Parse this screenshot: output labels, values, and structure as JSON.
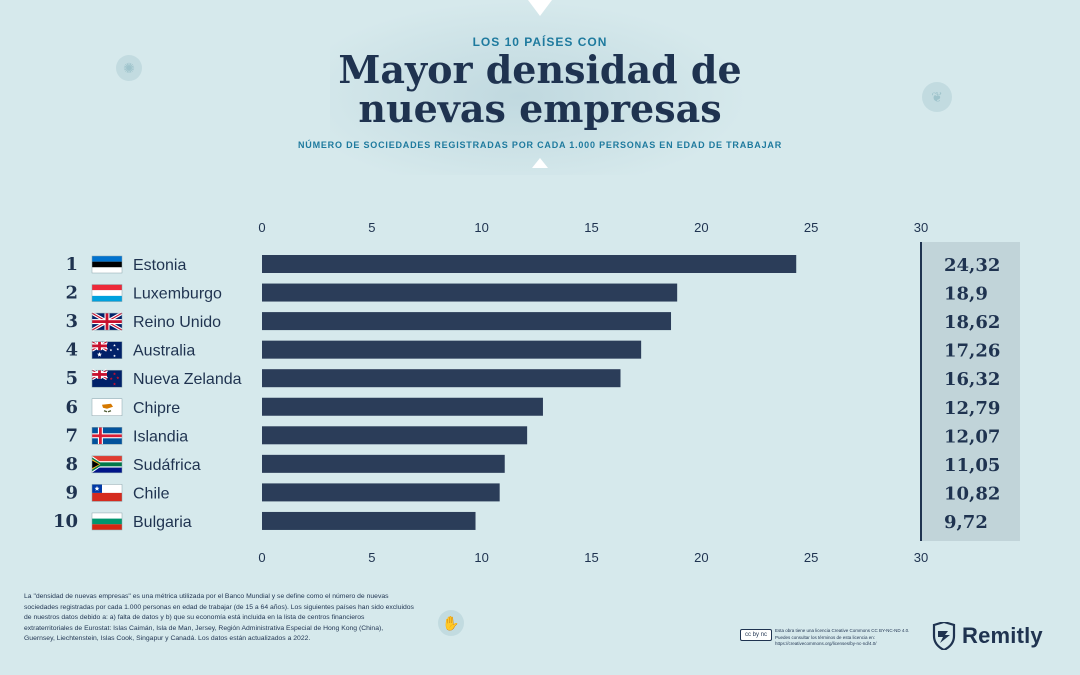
{
  "header": {
    "kicker": "LOS 10 PAÍSES CON",
    "title_line1": "Mayor densidad de",
    "title_line2": "nuevas empresas",
    "subtitle": "NÚMERO DE SOCIEDADES REGISTRADAS POR CADA 1.000 PERSONAS EN EDAD DE TRABAJAR"
  },
  "colors": {
    "bar": "#2b3d59",
    "text": "#1f3350",
    "accent": "#1e7a9e",
    "background": "#d6e9ec",
    "value_column": "#c1d4d9"
  },
  "chart_data": {
    "type": "bar",
    "orientation": "horizontal",
    "title": "Mayor densidad de nuevas empresas",
    "subtitle": "NÚMERO DE SOCIEDADES REGISTRADAS POR CADA 1.000 PERSONAS EN EDAD DE TRABAJAR",
    "xlim": [
      0,
      30
    ],
    "ticks": [
      0,
      5,
      10,
      15,
      20,
      25,
      30
    ],
    "grid": false,
    "ranks": [
      "1",
      "2",
      "3",
      "4",
      "5",
      "6",
      "7",
      "8",
      "9",
      "10"
    ],
    "categories": [
      "Estonia",
      "Luxemburgo",
      "Reino Unido",
      "Australia",
      "Nueva Zelanda",
      "Chipre",
      "Islandia",
      "Sudáfrica",
      "Chile",
      "Bulgaria"
    ],
    "values": [
      24.32,
      18.9,
      18.62,
      17.26,
      16.32,
      12.79,
      12.07,
      11.05,
      10.82,
      9.72
    ],
    "value_labels": [
      "24,32",
      "18,9",
      "18,62",
      "17,26",
      "16,32",
      "12,79",
      "12,07",
      "11,05",
      "10,82",
      "9,72"
    ],
    "flags": [
      "estonia-flag",
      "luxembourg-flag",
      "uk-flag",
      "australia-flag",
      "new-zealand-flag",
      "cyprus-flag",
      "iceland-flag",
      "south-africa-flag",
      "chile-flag",
      "bulgaria-flag"
    ]
  },
  "footer": {
    "note": "La \"densidad de nuevas empresas\" es una métrica utilizada por el Banco Mundial y se define como el número de nuevas sociedades registradas por cada 1.000 personas en edad de trabajar (de 15 a 64 años). Los siguientes países han sido excluidos de nuestros datos debido a: a) falta de datos y b) que su economía está incluida en la lista de centros financieros extraterritoriales de Eurostat: Islas Caimán, Isla de Man, Jersey, Región Administrativa Especial de Hong Kong (China), Guernsey, Liechtenstein, Islas Cook, Singapur y Canadá. Los datos están actualizados a 2022.",
    "license_badge": "cc by nc",
    "license_line1": "Esta obra tiene una licencia Creative Commons CC BY-NC-ND 4.0.",
    "license_line2": "Puedes consultar los términos de esta licencia en:",
    "license_line3": "https://creativecommons.org/licenses/by-nc-nd/4.0/",
    "brand": "Remitly"
  }
}
